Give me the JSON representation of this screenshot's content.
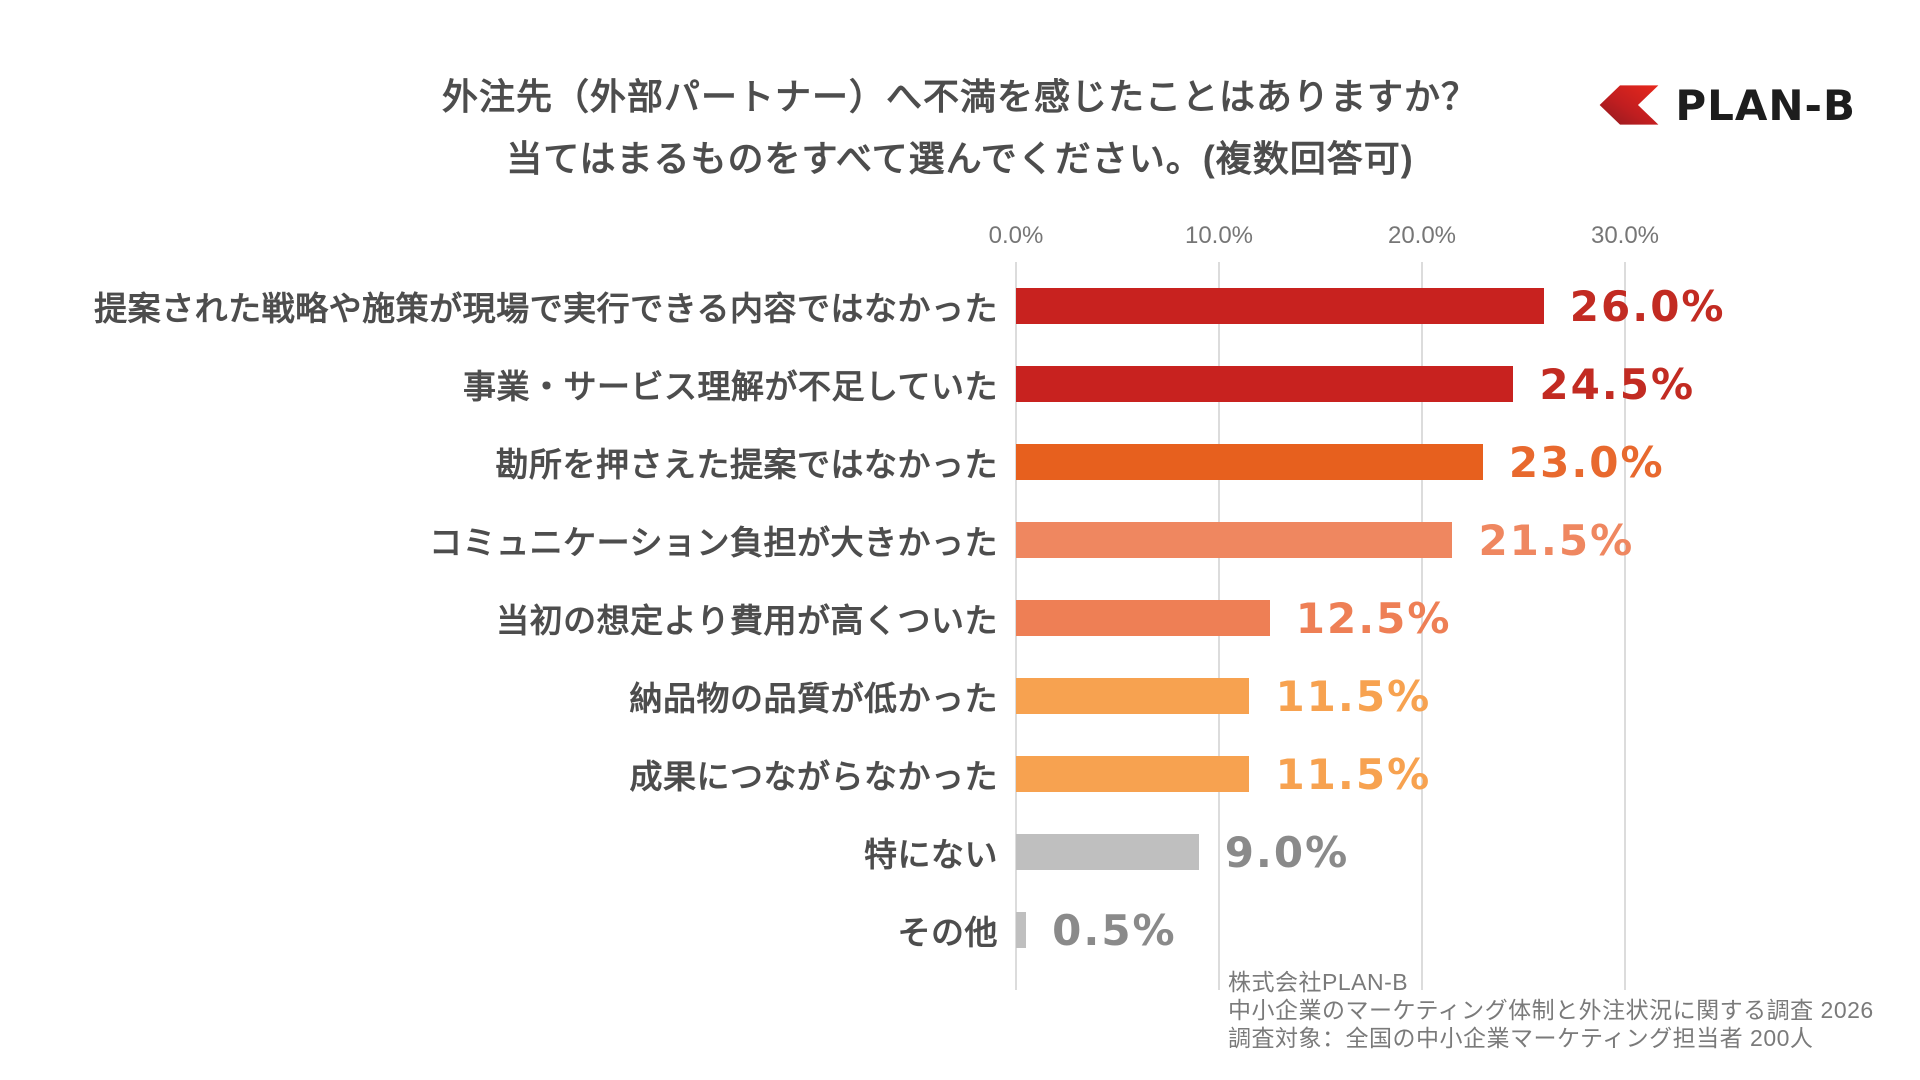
{
  "header": {
    "title_line1": "外注先（外部パートナー）へ不満を感じたことはありますか？",
    "title_line2": "当てはまるものをすべて選んでください。(複数回答可)",
    "logo": {
      "text": "PLAN-B",
      "mark_color_dark": "#8f1a1f",
      "mark_color_mid": "#c11e20",
      "mark_color_bright": "#e8281c",
      "text_color": "#1d1d1d"
    }
  },
  "chart_data": {
    "type": "bar",
    "orientation": "horizontal",
    "title": "外注先（外部パートナー）へ不満を感じたことはありますか？ 当てはまるものをすべて選んでください。(複数回答可)",
    "unit": "%",
    "axis": {
      "grid": true,
      "grid_color": "#dcdcdc",
      "tick_text_color": "#767676",
      "max_shown": 30,
      "ticks": [
        {
          "label": "0.0%",
          "value": 0
        },
        {
          "label": "10.0%",
          "value": 10
        },
        {
          "label": "20.0%",
          "value": 20
        },
        {
          "label": "30.0%",
          "value": 30
        }
      ]
    },
    "categories": [
      "提案された戦略や施策が現場で実行できる内容ではなかった",
      "事業・サービス理解が不足していた",
      "勘所を押さえた提案ではなかった",
      "コミュニケーション負担が大きかった",
      "当初の想定より費用が高くついた",
      "納品物の品質が低かった",
      "成果につながらなかった",
      "特にない",
      "その他"
    ],
    "values": [
      26.0,
      24.5,
      23.0,
      21.5,
      12.5,
      11.5,
      11.5,
      9.0,
      0.5
    ],
    "rows": [
      {
        "label": "提案された戦略や施策が現場で実行できる内容ではなかった",
        "value": 26.0,
        "value_label": "26.0%",
        "bar_color": "#c8221f",
        "value_color": "#c22b22"
      },
      {
        "label": "事業・サービス理解が不足していた",
        "value": 24.5,
        "value_label": "24.5%",
        "bar_color": "#c8221f",
        "value_color": "#c22b22"
      },
      {
        "label": "勘所を押さえた提案ではなかった",
        "value": 23.0,
        "value_label": "23.0%",
        "bar_color": "#e7601e",
        "value_color": "#e8692e"
      },
      {
        "label": "コミュニケーション負担が大きかった",
        "value": 21.5,
        "value_label": "21.5%",
        "bar_color": "#ef8760",
        "value_color": "#ef8760"
      },
      {
        "label": "当初の想定より費用が高くついた",
        "value": 12.5,
        "value_label": "12.5%",
        "bar_color": "#ee7f55",
        "value_color": "#ee7f55"
      },
      {
        "label": "納品物の品質が低かった",
        "value": 11.5,
        "value_label": "11.5%",
        "bar_color": "#f7a250",
        "value_color": "#f7a250"
      },
      {
        "label": "成果につながらなかった",
        "value": 11.5,
        "value_label": "11.5%",
        "bar_color": "#f7a250",
        "value_color": "#f7a250"
      },
      {
        "label": "特にない",
        "value": 9.0,
        "value_label": "9.0%",
        "bar_color": "#bfbfbf",
        "value_color": "#8a8a8a"
      },
      {
        "label": "その他",
        "value": 0.5,
        "value_label": "0.5%",
        "bar_color": "#bfbfbf",
        "value_color": "#8a8a8a"
      }
    ]
  },
  "footer": {
    "line1": "株式会社PLAN-B",
    "line2": "中小企業のマーケティング体制と外注状況に関する調査 2026",
    "line3": "調査対象：全国の中小企業マーケティング担当者 200人"
  }
}
